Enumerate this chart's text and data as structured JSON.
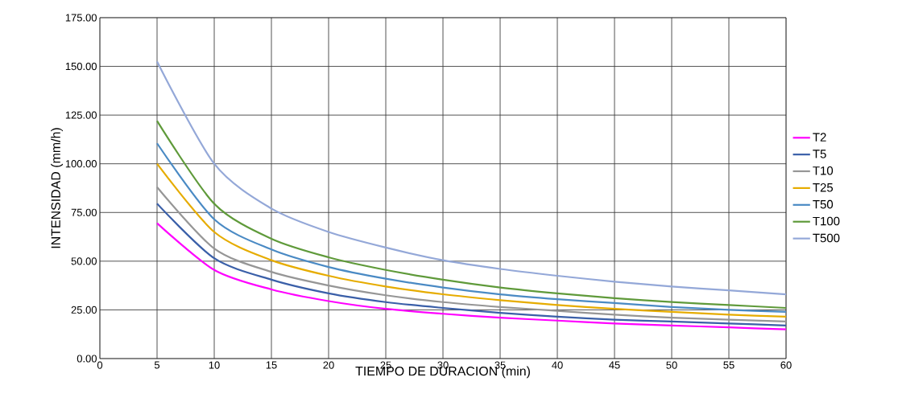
{
  "chart_data": {
    "type": "line",
    "xlabel": "TIEMPO DE DURACION (min)",
    "ylabel": "INTENSIDAD (mm/h)",
    "x": [
      5,
      10,
      15,
      20,
      25,
      30,
      35,
      40,
      45,
      50,
      55,
      60
    ],
    "series": [
      {
        "name": "T2",
        "color": "#ff00ff",
        "values": [
          69.5,
          45.5,
          35.5,
          29.5,
          25.5,
          23,
          21,
          19.5,
          18,
          17,
          16,
          15
        ]
      },
      {
        "name": "T5",
        "color": "#3a5fa8",
        "values": [
          79.5,
          51.5,
          40.5,
          33.5,
          29,
          26,
          23.5,
          21.5,
          20,
          19,
          18,
          17
        ]
      },
      {
        "name": "T10",
        "color": "#969696",
        "values": [
          88,
          56.5,
          44.5,
          37.5,
          32.5,
          29,
          26.5,
          24.5,
          22.5,
          21,
          20,
          19
        ]
      },
      {
        "name": "T25",
        "color": "#e6ac00",
        "values": [
          100,
          65,
          50.5,
          42.5,
          37,
          33,
          30,
          27.5,
          25.5,
          24,
          22.5,
          21.5
        ]
      },
      {
        "name": "T50",
        "color": "#4a8ac4",
        "values": [
          110.5,
          71.5,
          56,
          47,
          41,
          36.5,
          33,
          30.5,
          28.5,
          26.5,
          25,
          24
        ]
      },
      {
        "name": "T100",
        "color": "#5f9a3a",
        "values": [
          122,
          79.5,
          61.5,
          52,
          45.5,
          40.5,
          36.5,
          33.5,
          31,
          29,
          27.5,
          26
        ]
      },
      {
        "name": "T500",
        "color": "#94a8d8",
        "values": [
          152.5,
          100,
          77,
          65,
          57,
          50.5,
          46,
          42.5,
          39.5,
          37,
          35,
          33
        ]
      }
    ],
    "xlim": [
      0,
      60
    ],
    "xticks": [
      0,
      5,
      10,
      15,
      20,
      25,
      30,
      35,
      40,
      45,
      50,
      55,
      60
    ],
    "ylim": [
      0,
      175
    ],
    "yticks": [
      {
        "value": 0,
        "label": "0.00"
      },
      {
        "value": 25,
        "label": "25.00"
      },
      {
        "value": 50,
        "label": "50.00"
      },
      {
        "value": 75,
        "label": "75.00"
      },
      {
        "value": 100,
        "label": "100.00"
      },
      {
        "value": 125,
        "label": "125.00"
      },
      {
        "value": 150,
        "label": "150.00"
      },
      {
        "value": 175,
        "label": "175.00"
      }
    ],
    "grid": true,
    "legend": "right",
    "marker": "none",
    "line_style": "solid"
  }
}
